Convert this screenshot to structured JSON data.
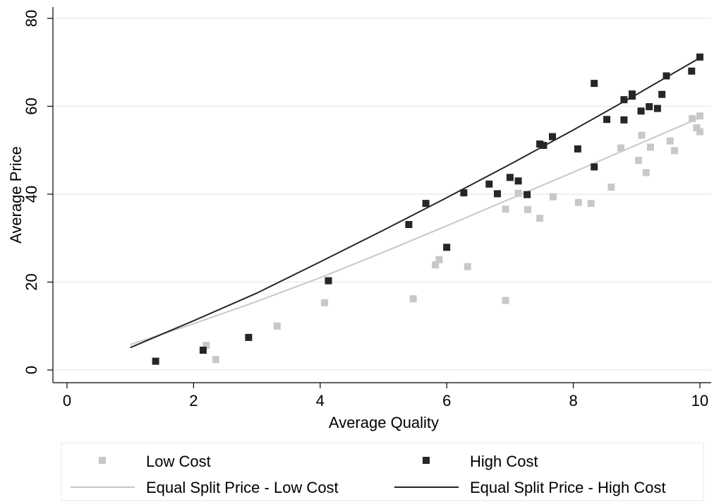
{
  "chart_data": {
    "type": "scatter",
    "xlabel": "Average Quality",
    "ylabel": "Average Price",
    "xlim": [
      -0.25,
      10.2
    ],
    "ylim": [
      -3,
      81
    ],
    "xticks": [
      "0",
      "2",
      "4",
      "6",
      "8",
      "10"
    ],
    "yticks": [
      "0",
      "20",
      "40",
      "60",
      "80"
    ],
    "xtick_values": [
      0,
      2,
      4,
      6,
      8,
      10
    ],
    "ytick_values": [
      0,
      20,
      40,
      60,
      80
    ],
    "grid": "horizontal",
    "legend_position": "bottom",
    "colors": {
      "low": "#c8c8c8",
      "high": "#262626",
      "low_line": "#c8c8c8",
      "high_line": "#262626",
      "grid": "#e4efee"
    },
    "legend": {
      "low_cost": "Low Cost",
      "high_cost": "High Cost",
      "low_line": "Equal Split Price - Low Cost",
      "high_line": "Equal Split Price - High Cost"
    },
    "series": [
      {
        "name": "Low Cost",
        "kind": "scatter",
        "color": "#c8c8c8",
        "points": [
          [
            2.2,
            5.6
          ],
          [
            2.35,
            2.4
          ],
          [
            3.32,
            10.0
          ],
          [
            4.07,
            15.3
          ],
          [
            5.47,
            16.2
          ],
          [
            5.82,
            23.9
          ],
          [
            5.88,
            25.1
          ],
          [
            6.33,
            23.5
          ],
          [
            6.93,
            36.6
          ],
          [
            6.93,
            15.8
          ],
          [
            7.13,
            40.2
          ],
          [
            7.28,
            36.5
          ],
          [
            7.47,
            34.5
          ],
          [
            7.68,
            39.4
          ],
          [
            8.08,
            38.1
          ],
          [
            8.28,
            37.9
          ],
          [
            8.6,
            41.6
          ],
          [
            8.75,
            50.5
          ],
          [
            9.03,
            47.7
          ],
          [
            9.08,
            53.4
          ],
          [
            9.15,
            44.9
          ],
          [
            9.22,
            50.7
          ],
          [
            9.53,
            52.1
          ],
          [
            9.6,
            49.9
          ],
          [
            9.88,
            57.2
          ],
          [
            9.95,
            55.1
          ],
          [
            10.0,
            57.8
          ],
          [
            10.0,
            54.2
          ]
        ]
      },
      {
        "name": "High Cost",
        "kind": "scatter",
        "color": "#262626",
        "points": [
          [
            1.4,
            2.0
          ],
          [
            2.15,
            4.5
          ],
          [
            2.87,
            7.4
          ],
          [
            4.13,
            20.3
          ],
          [
            5.4,
            33.1
          ],
          [
            5.67,
            37.9
          ],
          [
            6.0,
            27.9
          ],
          [
            6.27,
            40.3
          ],
          [
            6.67,
            42.3
          ],
          [
            6.8,
            40.1
          ],
          [
            7.0,
            43.8
          ],
          [
            7.13,
            43.0
          ],
          [
            7.27,
            39.9
          ],
          [
            7.47,
            51.4
          ],
          [
            7.53,
            51.1
          ],
          [
            7.67,
            53.1
          ],
          [
            8.07,
            50.3
          ],
          [
            8.33,
            65.2
          ],
          [
            8.33,
            46.2
          ],
          [
            8.53,
            57.0
          ],
          [
            8.8,
            61.5
          ],
          [
            8.8,
            56.9
          ],
          [
            8.93,
            62.3
          ],
          [
            8.93,
            62.8
          ],
          [
            9.07,
            58.9
          ],
          [
            9.2,
            59.9
          ],
          [
            9.33,
            59.5
          ],
          [
            9.4,
            62.7
          ],
          [
            9.47,
            66.9
          ],
          [
            9.87,
            68.0
          ],
          [
            10.0,
            71.2
          ]
        ]
      },
      {
        "name": "Equal Split Price - Low Cost",
        "kind": "line",
        "color": "#c8c8c8",
        "points": [
          [
            1.0,
            5.8
          ],
          [
            2.0,
            10.5
          ],
          [
            3.0,
            15.6
          ],
          [
            4.0,
            21.0
          ],
          [
            5.0,
            26.8
          ],
          [
            6.0,
            32.8
          ],
          [
            7.0,
            38.9
          ],
          [
            8.0,
            45.0
          ],
          [
            9.0,
            51.2
          ],
          [
            10.0,
            57.4
          ]
        ]
      },
      {
        "name": "Equal Split Price - High Cost",
        "kind": "line",
        "color": "#262626",
        "points": [
          [
            1.0,
            5.1
          ],
          [
            2.0,
            11.2
          ],
          [
            3.0,
            17.5
          ],
          [
            4.0,
            24.6
          ],
          [
            5.0,
            31.8
          ],
          [
            6.0,
            39.2
          ],
          [
            7.0,
            46.8
          ],
          [
            8.0,
            54.6
          ],
          [
            9.0,
            62.7
          ],
          [
            10.0,
            71.0
          ]
        ]
      }
    ]
  }
}
